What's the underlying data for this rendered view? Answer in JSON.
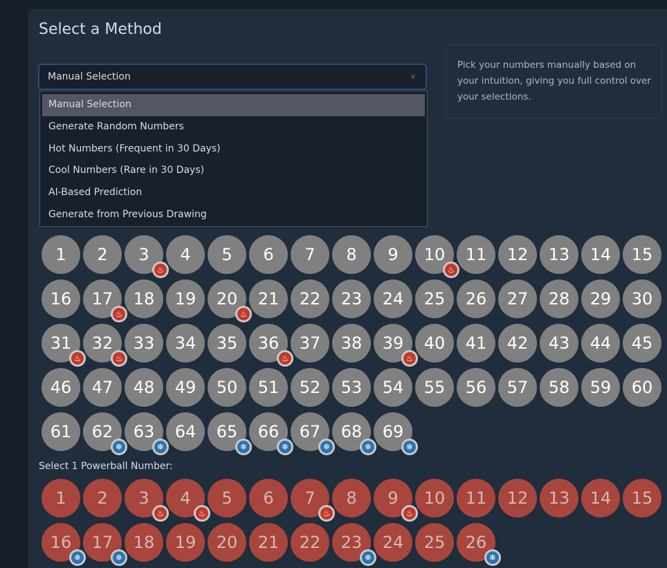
{
  "title": "Select a Method",
  "select": {
    "value": "Manual Selection",
    "options": [
      "Manual Selection",
      "Generate Random Numbers",
      "Hot Numbers (Frequent in 30 Days)",
      "Cool Numbers (Rare in 30 Days)",
      "AI-Based Prediction",
      "Generate from Previous Drawing"
    ],
    "selected_index": 0
  },
  "info": "Pick your numbers manually based on your intuition, giving you full control over your selections.",
  "white_balls": {
    "count": 69,
    "hot": [
      3,
      10,
      17,
      20,
      31,
      32,
      36,
      39
    ],
    "cold": [
      62,
      63,
      65,
      66,
      67,
      68,
      69
    ]
  },
  "powerball_label": "Select 1 Powerball Number:",
  "powerball": {
    "count": 26,
    "hot": [
      3,
      4,
      7,
      9
    ],
    "cold": [
      16,
      17,
      23,
      26
    ]
  },
  "colors": {
    "white": "#808080",
    "powerball": "#a8463d",
    "hot": "#c0392b",
    "cold": "#2a73b0"
  }
}
